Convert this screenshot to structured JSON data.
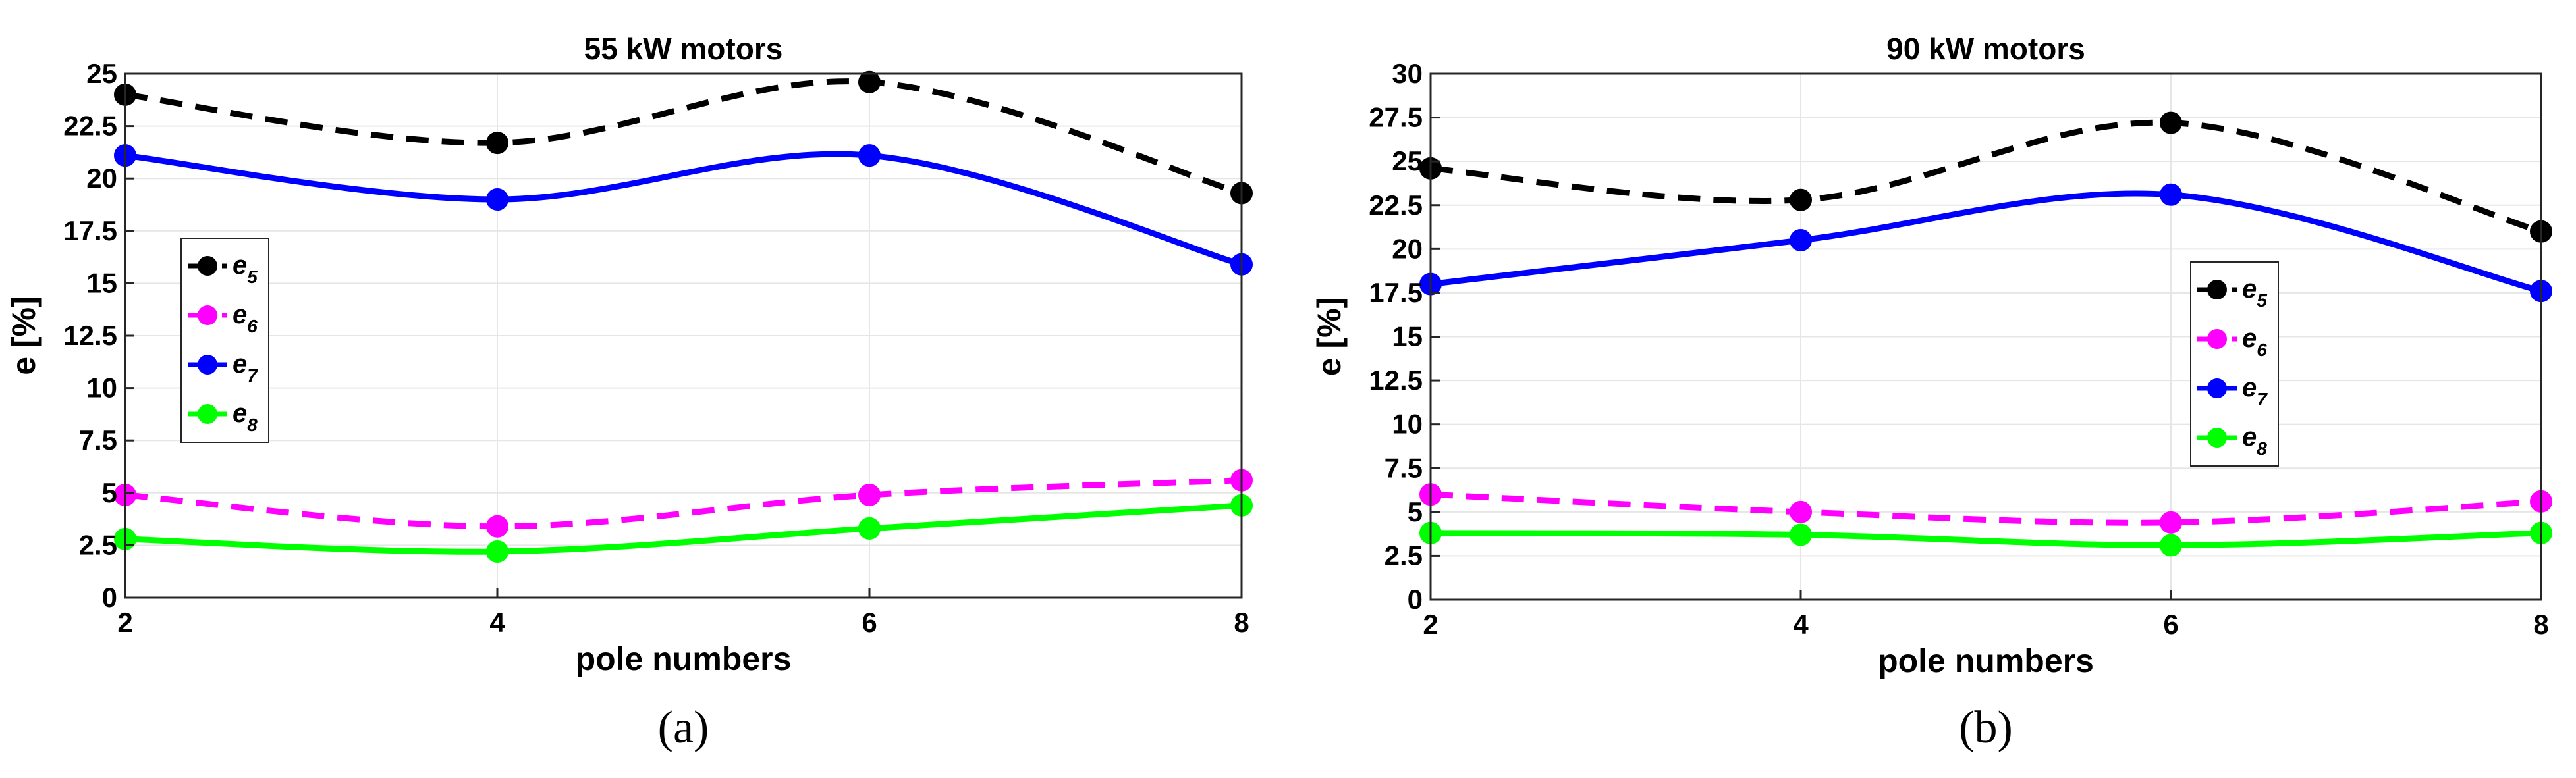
{
  "chart_data": [
    {
      "type": "line",
      "title": "55 kW motors",
      "xlabel": "pole numbers",
      "ylabel": "e [%]",
      "caption": "(a)",
      "x": [
        2,
        4,
        6,
        8
      ],
      "xlim": [
        2,
        8
      ],
      "ylim": [
        0,
        25
      ],
      "xticks": [
        "2",
        "4",
        "6",
        "8"
      ],
      "yticks": [
        "0",
        "2.5",
        "5",
        "7.5",
        "10",
        "12.5",
        "15",
        "17.5",
        "20",
        "22.5",
        "25"
      ],
      "grid": true,
      "legend_position": "middle-left",
      "series": [
        {
          "name": "e5",
          "label_main": "e",
          "label_sub": "5",
          "color": "#000000",
          "dashed": true,
          "values": [
            24.0,
            21.7,
            24.6,
            19.3
          ]
        },
        {
          "name": "e6",
          "label_main": "e",
          "label_sub": "6",
          "color": "#ff00ff",
          "dashed": true,
          "values": [
            4.9,
            3.4,
            4.9,
            5.6
          ]
        },
        {
          "name": "e7",
          "label_main": "e",
          "label_sub": "7",
          "color": "#0000ff",
          "dashed": false,
          "values": [
            21.1,
            19.0,
            21.1,
            15.9
          ]
        },
        {
          "name": "e8",
          "label_main": "e",
          "label_sub": "8",
          "color": "#00ff00",
          "dashed": false,
          "values": [
            2.8,
            2.2,
            3.3,
            4.4
          ]
        }
      ]
    },
    {
      "type": "line",
      "title": "90 kW motors",
      "xlabel": "pole numbers",
      "ylabel": "e [%]",
      "caption": "(b)",
      "x": [
        2,
        4,
        6,
        8
      ],
      "xlim": [
        2,
        8
      ],
      "ylim": [
        0,
        30
      ],
      "xticks": [
        "2",
        "4",
        "6",
        "8"
      ],
      "yticks": [
        "0",
        "2.5",
        "5",
        "7.5",
        "10",
        "12.5",
        "15",
        "17.5",
        "20",
        "22.5",
        "25",
        "27.5",
        "30"
      ],
      "grid": true,
      "legend_position": "middle-right",
      "series": [
        {
          "name": "e5",
          "label_main": "e",
          "label_sub": "5",
          "color": "#000000",
          "dashed": true,
          "values": [
            24.6,
            22.8,
            27.2,
            21.0
          ]
        },
        {
          "name": "e6",
          "label_main": "e",
          "label_sub": "6",
          "color": "#ff00ff",
          "dashed": true,
          "values": [
            6.0,
            5.0,
            4.4,
            5.6
          ]
        },
        {
          "name": "e7",
          "label_main": "e",
          "label_sub": "7",
          "color": "#0000ff",
          "dashed": false,
          "values": [
            18.0,
            20.5,
            23.1,
            17.6
          ]
        },
        {
          "name": "e8",
          "label_main": "e",
          "label_sub": "8",
          "color": "#00ff00",
          "dashed": false,
          "values": [
            3.8,
            3.7,
            3.1,
            3.8
          ]
        }
      ]
    }
  ]
}
